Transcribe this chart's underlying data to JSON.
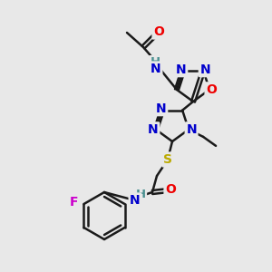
{
  "background_color": "#e8e8e8",
  "bond_color": "#1a1a1a",
  "atom_colors": {
    "N": "#0000cc",
    "O": "#ee0000",
    "S": "#bbaa00",
    "F": "#cc00cc",
    "H": "#4a9090",
    "C": "#1a1a1a"
  },
  "figsize": [
    3.0,
    3.0
  ],
  "dpi": 100
}
